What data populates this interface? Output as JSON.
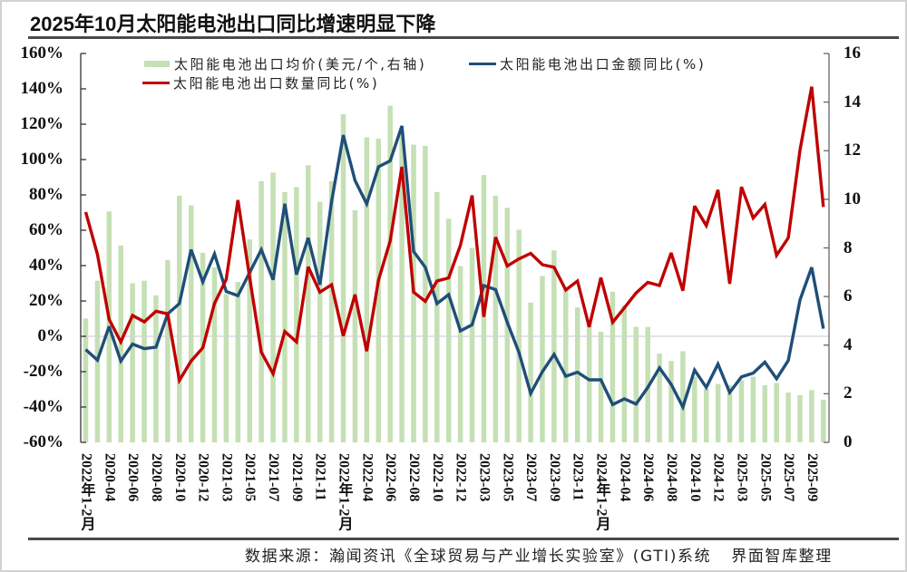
{
  "title": "2025年10月太阳能电池出口同比增速明显下降",
  "legend": [
    {
      "label": "太阳能电池出口均价(美元/个,右轴)",
      "kind": "bar",
      "color": "#c5e0b4"
    },
    {
      "label": "太阳能电池出口金额同比(%)",
      "kind": "line",
      "color": "#1f4e79"
    },
    {
      "label": "太阳能电池出口数量同比(%)",
      "kind": "line",
      "color": "#c00000"
    }
  ],
  "footer": {
    "source": "数据来源：瀚闻资讯《全球贸易与产业增长实验室》(GTI)系统",
    "credit": "界面智库整理"
  },
  "colors": {
    "bar": "#c5e0b4",
    "amount_line": "#1f4e79",
    "volume_line": "#c00000",
    "zero_line": "#d4d4d4",
    "axis": "#333333",
    "rule": "#4a4a4a"
  },
  "chart_data": {
    "type": "bar",
    "title": "2025年10月太阳能电池出口同比增速明显下降",
    "xlabel": "",
    "ylabel": "",
    "x_tick_labels": [
      "2022年1-2月",
      "",
      "2020-04",
      "",
      "2020-06",
      "",
      "2020-08",
      "",
      "2020-10",
      "",
      "2020-12",
      "",
      "2021-03",
      "",
      "2021-05",
      "",
      "2021-07",
      "",
      "2021-09",
      "",
      "2021-11",
      "",
      "2022年1-2月",
      "",
      "2022-04",
      "",
      "2022-06",
      "",
      "2022-08",
      "",
      "2022-10",
      "",
      "2022-12",
      "",
      "2023-03",
      "",
      "2023-05",
      "",
      "2023-07",
      "",
      "2023-09",
      "",
      "2023-11",
      "",
      "2024年1-2月",
      "",
      "2024-04",
      "",
      "2024-06",
      "",
      "2024-08",
      "",
      "2024-10",
      "",
      "2024-12",
      "",
      "2025-03",
      "",
      "2025-05",
      "",
      "2025-07",
      "",
      "2025-09",
      ""
    ],
    "series": [
      {
        "name": "太阳能电池出口均价(美元/个,右轴)",
        "type": "bar",
        "axis": "right",
        "values": [
          5.1,
          6.65,
          9.5,
          8.1,
          6.55,
          6.65,
          6.05,
          7.5,
          10.15,
          9.75,
          7.8,
          7.2,
          6.1,
          6.6,
          8.35,
          10.75,
          11.1,
          10.3,
          10.5,
          11.4,
          9.9,
          10.75,
          13.5,
          9.55,
          12.55,
          12.5,
          13.85,
          12.8,
          12.25,
          12.2,
          10.3,
          9.2,
          7.25,
          8.0,
          11.0,
          10.15,
          9.65,
          8.75,
          5.75,
          6.85,
          7.9,
          6.3,
          5.55,
          5.0,
          4.55,
          6.2,
          5.65,
          4.75,
          4.75,
          3.65,
          3.35,
          3.75,
          2.7,
          2.2,
          2.4,
          2.35,
          2.55,
          2.7,
          2.35,
          2.45,
          2.05,
          1.95,
          2.15,
          1.75
        ]
      },
      {
        "name": "太阳能电池出口金额同比(%)",
        "type": "line",
        "axis": "left",
        "values": [
          -7.5,
          -13.5,
          5.6,
          -14,
          -4.4,
          -7,
          -6.1,
          12.7,
          18.5,
          49,
          30.8,
          46.6,
          25.4,
          23,
          36,
          49,
          32,
          75,
          35,
          55.7,
          29.2,
          76.3,
          113.8,
          88.2,
          74.9,
          95.9,
          99.3,
          119,
          48,
          39,
          18.5,
          23.6,
          3.1,
          6.5,
          28.7,
          26.4,
          7.9,
          -9.2,
          -32.3,
          -20,
          -10.2,
          -22.6,
          -20.3,
          -24.6,
          -24.6,
          -38.6,
          -35.4,
          -38.3,
          -28.9,
          -17.9,
          -27.2,
          -40,
          -19.1,
          -28.9,
          -15.7,
          -31.8,
          -22.9,
          -20.8,
          -14.6,
          -24,
          -13.7,
          20.5,
          39,
          4.3
        ]
      },
      {
        "name": "太阳能电池出口数量同比(%)",
        "type": "line",
        "axis": "left",
        "values": [
          70.3,
          46.4,
          9.6,
          -3.2,
          11.8,
          8.2,
          14.2,
          12.7,
          -24.9,
          -14,
          -6.5,
          18.6,
          32.2,
          77.1,
          33.5,
          -8.9,
          -21.2,
          2.7,
          -3.2,
          39.3,
          25,
          29.2,
          0.2,
          23.6,
          -8.4,
          31.8,
          54,
          95.9,
          25,
          19.8,
          31.3,
          33,
          51.5,
          79.7,
          11,
          56.1,
          39.8,
          43.8,
          46.9,
          40.5,
          39,
          26.2,
          31.3,
          5.3,
          33.2,
          7.9,
          16.1,
          24.5,
          30.5,
          28.7,
          47.2,
          25.8,
          73.7,
          62.6,
          82.8,
          29.7,
          84.5,
          66.9,
          74.6,
          45.8,
          55.7,
          105.3,
          141.2,
          73.2
        ]
      }
    ],
    "y_left": {
      "range": [
        -60,
        160
      ],
      "ticks": [
        160,
        140,
        120,
        100,
        80,
        60,
        40,
        20,
        0,
        -20,
        -40,
        -60
      ],
      "tick_labels": [
        "160%",
        "140%",
        "120%",
        "100%",
        "80%",
        "60%",
        "40%",
        "20%",
        "0%",
        "-20%",
        "-40%",
        "-60%"
      ]
    },
    "y_right": {
      "range": [
        0,
        16
      ],
      "ticks": [
        16,
        14,
        12,
        10,
        8,
        6,
        4,
        2,
        0
      ],
      "tick_labels": [
        "16",
        "14",
        "12",
        "10",
        "8",
        "6",
        "4",
        "2",
        "0"
      ]
    },
    "grid": false,
    "zero_line": true,
    "legend_position": "top-left inside plot"
  }
}
